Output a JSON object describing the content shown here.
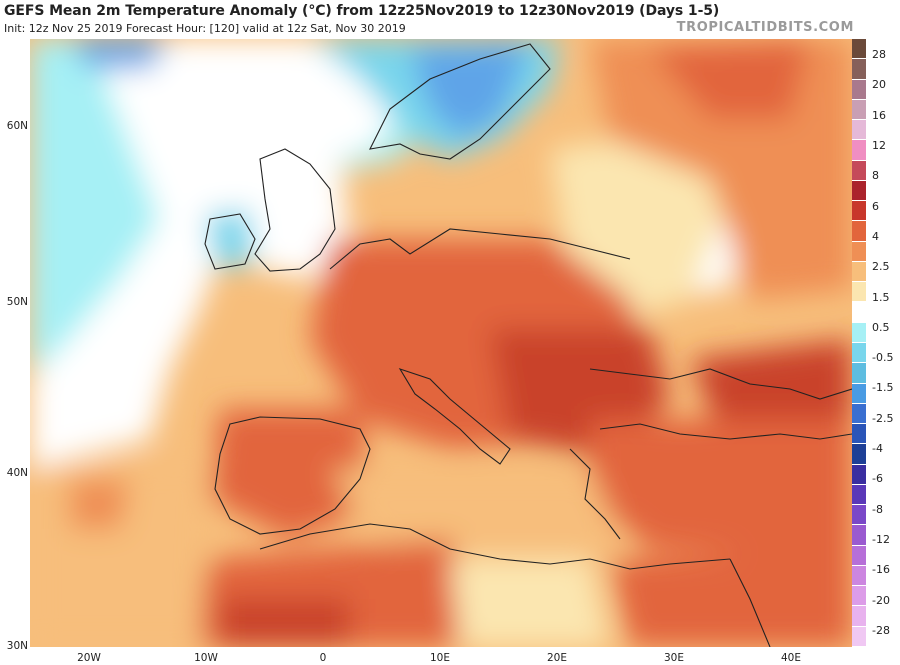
{
  "header": {
    "title": "GEFS Mean 2m Temperature Anomaly (°C) from 12z25Nov2019 to 12z30Nov2019 (Days 1-5)",
    "subtitle": "Init: 12z Nov 25 2019   Forecast Hour: [120]   valid at 12z Sat, Nov 30 2019",
    "brand": "TROPICALTIDBITS.COM"
  },
  "map": {
    "lat_labels": [
      "60N",
      "50N",
      "40N",
      "30N"
    ],
    "lon_labels": [
      "20W",
      "10W",
      "0",
      "10E",
      "20E",
      "30E",
      "40E"
    ],
    "colors": {
      "ocean_cold": "#a6f0f5",
      "ocean_cool": "#79d6ec",
      "scandinavia": "#5ea4e8",
      "neutral": "#ffffff",
      "pale_warm": "#fbe6b0",
      "warm": "#f7be7b",
      "warmer": "#ef8f55",
      "hot": "#e2653c",
      "hottest": "#c94329",
      "border": "#222222"
    }
  },
  "colorbar": {
    "labels": [
      "28",
      "20",
      "16",
      "12",
      "8",
      "6",
      "4",
      "2.5",
      "1.5",
      "0.5",
      "-0.5",
      "-1.5",
      "-2.5",
      "-4",
      "-6",
      "-8",
      "-12",
      "-16",
      "-20",
      "-28"
    ],
    "colors": [
      "#6b4a3a",
      "#86605a",
      "#a9798d",
      "#c99fb4",
      "#e5b9d8",
      "#f08ec2",
      "#c54a5a",
      "#ab232c",
      "#c8372b",
      "#e2653c",
      "#ef8f55",
      "#f7be7b",
      "#fbe6b0",
      "#ffffff",
      "#a6f0f5",
      "#79d6ec",
      "#5ebde0",
      "#4a9be3",
      "#3a6fd0",
      "#2a55b8",
      "#1e3f96",
      "#3a2ea0",
      "#5a38b8",
      "#7a48c8",
      "#9a5ad0",
      "#b66fd8",
      "#cc86e0",
      "#dc9ce8",
      "#e8b2ee",
      "#f0c8f3"
    ]
  }
}
